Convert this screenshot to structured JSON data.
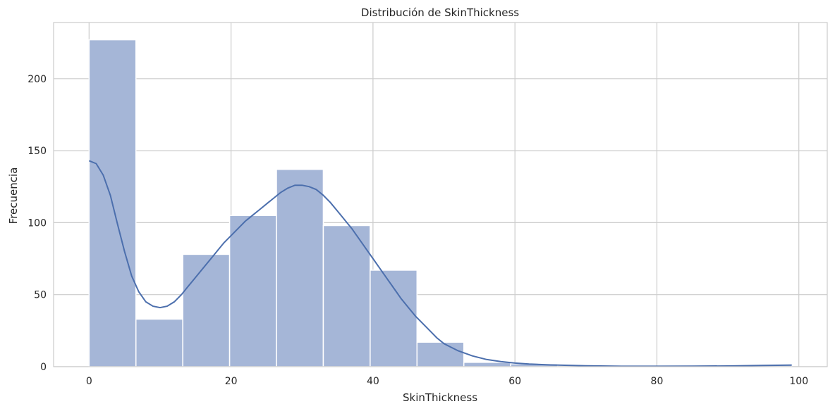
{
  "chart_data": {
    "type": "bar",
    "title": "Distribución de SkinThickness",
    "xlabel": "SkinThickness",
    "ylabel": "Frecuencia",
    "xlim": [
      -5,
      104
    ],
    "ylim": [
      0,
      239
    ],
    "xticks": [
      0,
      20,
      40,
      60,
      80,
      100
    ],
    "yticks": [
      0,
      50,
      100,
      150,
      200
    ],
    "grid": true,
    "bin_width": 6.6,
    "bins": [
      {
        "start": 0.0,
        "end": 6.6,
        "count": 227
      },
      {
        "start": 6.6,
        "end": 13.2,
        "count": 33
      },
      {
        "start": 13.2,
        "end": 19.8,
        "count": 78
      },
      {
        "start": 19.8,
        "end": 26.4,
        "count": 105
      },
      {
        "start": 26.4,
        "end": 33.0,
        "count": 137
      },
      {
        "start": 33.0,
        "end": 39.6,
        "count": 98
      },
      {
        "start": 39.6,
        "end": 46.2,
        "count": 67
      },
      {
        "start": 46.2,
        "end": 52.8,
        "count": 17
      },
      {
        "start": 52.8,
        "end": 59.4,
        "count": 3
      },
      {
        "start": 59.4,
        "end": 66.0,
        "count": 2
      },
      {
        "start": 66.0,
        "end": 72.6,
        "count": 0
      },
      {
        "start": 72.6,
        "end": 79.2,
        "count": 0
      },
      {
        "start": 79.2,
        "end": 85.8,
        "count": 0
      },
      {
        "start": 85.8,
        "end": 92.4,
        "count": 0
      },
      {
        "start": 92.4,
        "end": 99.0,
        "count": 1
      }
    ],
    "kde": {
      "x": [
        0,
        1,
        2,
        3,
        4,
        5,
        6,
        7,
        8,
        9,
        10,
        11,
        12,
        13,
        14,
        15,
        16,
        17,
        18,
        19,
        20,
        21,
        22,
        23,
        24,
        25,
        26,
        27,
        28,
        29,
        30,
        31,
        32,
        33,
        34,
        35,
        36,
        37,
        38,
        39,
        40,
        41,
        42,
        43,
        44,
        45,
        46,
        47,
        48,
        49,
        50,
        52,
        54,
        56,
        58,
        60,
        62,
        65,
        70,
        75,
        80,
        85,
        90,
        95,
        99
      ],
      "y": [
        143,
        141,
        133,
        119,
        99,
        80,
        63,
        52,
        45,
        42,
        41,
        42,
        45,
        50,
        56,
        62,
        68,
        74,
        80,
        86,
        91,
        96,
        101,
        105,
        109,
        113,
        117,
        121,
        124,
        126,
        126,
        125,
        123,
        119,
        114,
        108,
        102,
        96,
        89,
        82,
        75,
        68,
        61,
        54,
        47,
        41,
        35,
        30,
        25,
        20,
        16,
        11,
        7.5,
        5,
        3.5,
        2.5,
        1.8,
        1.2,
        0.6,
        0.3,
        0.3,
        0.4,
        0.5,
        0.9,
        1.1
      ]
    }
  }
}
